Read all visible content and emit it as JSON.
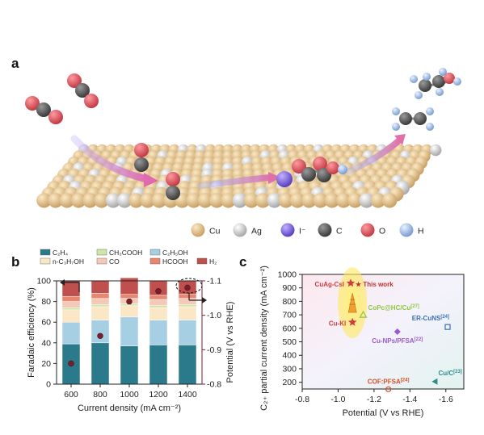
{
  "figure": {
    "panel_a": {
      "label": "a",
      "legend": [
        {
          "name": "Cu",
          "color": "#e5c48a"
        },
        {
          "name": "Ag",
          "color": "#d4d4d4"
        },
        {
          "name": "I⁻",
          "color": "#8a6fe0"
        },
        {
          "name": "C",
          "color": "#555555"
        },
        {
          "name": "O",
          "color": "#e0505a"
        },
        {
          "name": "H",
          "color": "#a9c6ea"
        }
      ]
    },
    "panel_b": {
      "label": "b"
    },
    "panel_c": {
      "label": "c"
    }
  },
  "chart_data": [
    {
      "id": "b",
      "type": "bar",
      "stacked": true,
      "categories": [
        "600",
        "800",
        "1000",
        "1200",
        "1400"
      ],
      "xlabel": "Current density (mA cm⁻²)",
      "ylabel": "Faradaic efficiency (%)",
      "ylim": [
        0,
        100
      ],
      "yticks": [
        "0",
        "20",
        "40",
        "60",
        "80",
        "100"
      ],
      "series": [
        {
          "name": "C₂H₄",
          "color": "#2a7a8c",
          "values": [
            39,
            40,
            37,
            38,
            38
          ]
        },
        {
          "name": "C₂H₅OH",
          "color": "#a7cfe4",
          "values": [
            21,
            22,
            28,
            24,
            24
          ]
        },
        {
          "name": "n-C₃H₇OH",
          "color": "#fbe7c6",
          "values": [
            12,
            13,
            11,
            12,
            13
          ]
        },
        {
          "name": "CH₃COOH",
          "color": "#cfe6a8",
          "values": [
            2,
            2,
            2,
            2,
            2
          ]
        },
        {
          "name": "CO",
          "color": "#f4c9b8",
          "values": [
            6,
            6,
            5,
            6,
            6
          ]
        },
        {
          "name": "HCOOH",
          "color": "#e8866e",
          "values": [
            5,
            5,
            4,
            4,
            4
          ]
        },
        {
          "name": "H₂",
          "color": "#c0504d",
          "values": [
            15,
            12,
            16,
            14,
            13
          ]
        }
      ],
      "secondary_axis": {
        "label": "Potential (V vs RHE)",
        "ylim": [
          -0.8,
          -1.1
        ],
        "yticks": [
          "-0.8",
          "-0.9",
          "-1.0",
          "-1.1"
        ],
        "color": "#7b1e2c",
        "values": [
          -0.86,
          -0.94,
          -1.04,
          -1.07,
          -1.08
        ]
      }
    },
    {
      "id": "c",
      "type": "scatter",
      "xlabel": "Potential (V vs RHE)",
      "ylabel": "C₂₊ partial current density (mA cm⁻²)",
      "xlim": [
        -0.8,
        -1.7
      ],
      "xticks": [
        "-0.8",
        "-1.0",
        "-1.2",
        "-1.4",
        "-1.6"
      ],
      "ylim": [
        150,
        1000
      ],
      "yticks": [
        "200",
        "300",
        "400",
        "500",
        "600",
        "700",
        "800",
        "900",
        "1000"
      ],
      "points": [
        {
          "label": "CuAg-CsI",
          "note": "★ This work",
          "x": -1.07,
          "y": 935,
          "color": "#d23c3c",
          "marker": "star"
        },
        {
          "label": "Cu-KI",
          "x": -1.08,
          "y": 645,
          "color": "#d23c3c",
          "marker": "star"
        },
        {
          "label": "CoPc@HC/Cu",
          "ref": "[27]",
          "x": -1.14,
          "y": 700,
          "color": "#8dc63f",
          "marker": "triangle"
        },
        {
          "label": "Cu-NPs/PFSA",
          "ref": "[22]",
          "x": -1.33,
          "y": 575,
          "color": "#9b59d0",
          "marker": "diamond"
        },
        {
          "label": "ER-CuNS",
          "ref": "[24]",
          "x": -1.61,
          "y": 610,
          "color": "#3b6fb6",
          "marker": "square"
        },
        {
          "label": "Cu/C",
          "ref": "[23]",
          "x": -1.54,
          "y": 205,
          "color": "#2a8c8c",
          "marker": "triangle-left"
        },
        {
          "label": "COF:PFSA",
          "ref": "[24]",
          "x": -1.28,
          "y": 148,
          "color": "#d0502a",
          "marker": "circle"
        }
      ]
    }
  ]
}
